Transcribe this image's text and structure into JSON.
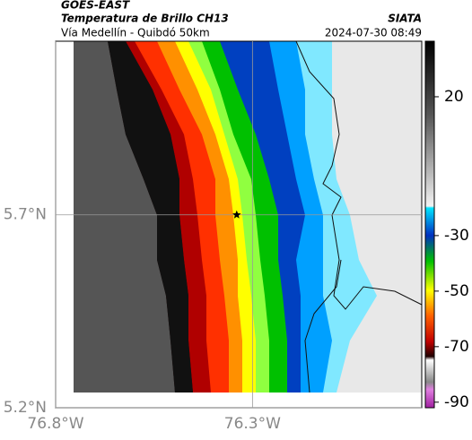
{
  "header": {
    "title": "GOES-EAST",
    "subtitle": "Temperatura de Brillo CH13",
    "source": "SIATA",
    "location": "Vía Medellín - Quibdó 50km",
    "datetime": "2024-07-30 08:49"
  },
  "map": {
    "xlim": [
      -76.8,
      -75.87
    ],
    "ylim": [
      5.2,
      6.15
    ],
    "xticks": [
      {
        "value": -76.8,
        "label": "76.8°W"
      },
      {
        "value": -76.3,
        "label": "76.3°W"
      }
    ],
    "yticks": [
      {
        "value": 5.2,
        "label": "5.2°N"
      },
      {
        "value": 5.7,
        "label": "5.7°N"
      }
    ],
    "marker": {
      "lon": -76.34,
      "lat": 5.7
    }
  },
  "colorbar": {
    "range": [
      -92,
      40
    ],
    "ticks": [
      20,
      -30,
      -50,
      -70,
      -90
    ]
  }
}
